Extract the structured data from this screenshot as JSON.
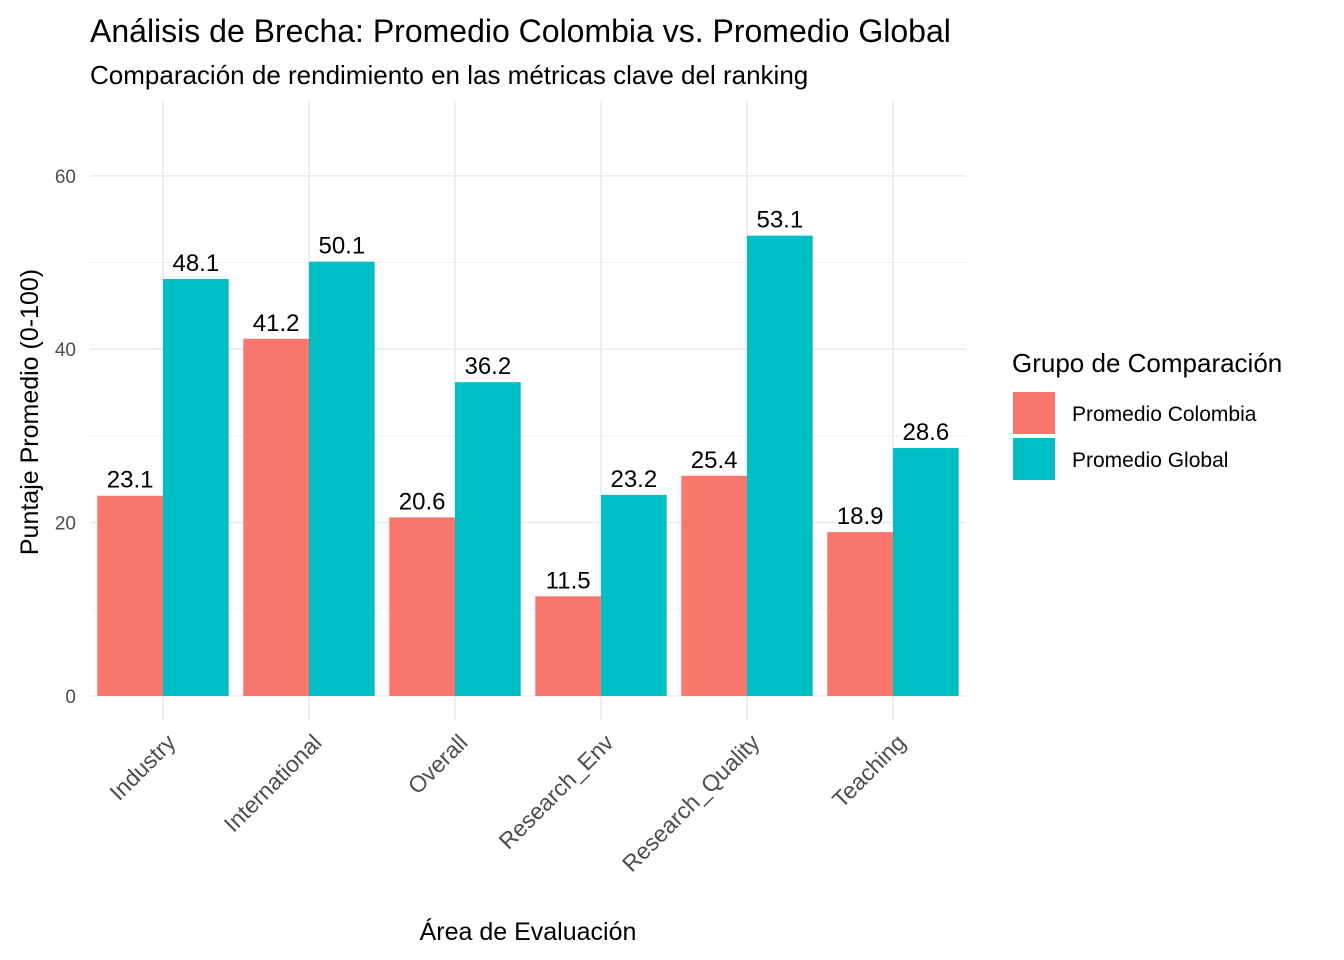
{
  "chart_data": {
    "type": "bar",
    "title": "Análisis de Brecha: Promedio Colombia vs. Promedio Global",
    "subtitle": "Comparación de rendimiento en las métricas clave del ranking",
    "xlabel": "Área de Evaluación",
    "ylabel": "Puntaje Promedio (0-100)",
    "ylim": [
      0,
      67
    ],
    "yticks": [
      0,
      20,
      40,
      60
    ],
    "grid": true,
    "categories": [
      "Industry",
      "International",
      "Overall",
      "Research_Env",
      "Research_Quality",
      "Teaching"
    ],
    "series": [
      {
        "name": "Promedio Colombia",
        "color": "#F8766D",
        "values": [
          23.1,
          41.2,
          20.6,
          11.5,
          25.4,
          18.9
        ]
      },
      {
        "name": "Promedio Global",
        "color": "#00BFC4",
        "values": [
          48.1,
          50.1,
          36.2,
          23.2,
          53.1,
          28.6
        ]
      }
    ],
    "value_labels": [
      [
        "23.1",
        "41.2",
        "20.6",
        "11.5",
        "25.4",
        "18.9"
      ],
      [
        "48.1",
        "50.1",
        "36.2",
        "23.2",
        "53.1",
        "28.6"
      ]
    ],
    "legend": {
      "title": "Grupo de Comparación",
      "position": "right"
    }
  }
}
